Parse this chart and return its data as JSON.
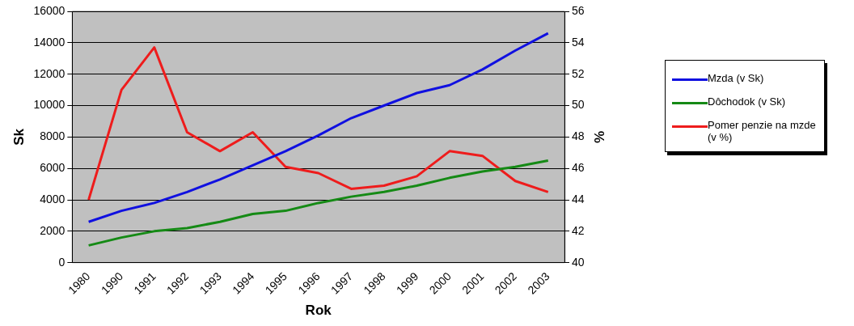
{
  "chart_data": {
    "type": "line",
    "xlabel": "Rok",
    "ylabel": "Sk",
    "y2label": "%",
    "categories": [
      "1980",
      "1990",
      "1991",
      "1992",
      "1993",
      "1994",
      "1995",
      "1996",
      "1997",
      "1998",
      "1999",
      "2000",
      "2001",
      "2002",
      "2003"
    ],
    "series": [
      {
        "name": "Mzda (v Sk)",
        "color": "#1010e0",
        "values": [
          2600,
          3300,
          3800,
          4500,
          5300,
          6200,
          7100,
          8100,
          9200,
          10000,
          10800,
          11300,
          12300,
          13500,
          14600
        ]
      },
      {
        "name": "Dôchodok (v Sk)",
        "color": "#158a15",
        "values": [
          1100,
          1600,
          2000,
          2200,
          2600,
          3100,
          3300,
          3800,
          4200,
          4500,
          4900,
          5400,
          5800,
          6100,
          6500
        ]
      },
      {
        "name": "Pomer penzie na mzde (v %)",
        "color": "#ee1c1c",
        "axis": "y2",
        "values": [
          44.0,
          51.0,
          53.7,
          48.3,
          47.1,
          48.3,
          46.1,
          45.7,
          44.7,
          44.9,
          45.5,
          47.1,
          46.8,
          45.2,
          44.5
        ]
      }
    ],
    "ylim": [
      0,
      16000
    ],
    "yticks": [
      0,
      2000,
      4000,
      6000,
      8000,
      10000,
      12000,
      14000,
      16000
    ],
    "y2lim": [
      40,
      56
    ],
    "y2ticks": [
      40,
      42,
      44,
      46,
      48,
      50,
      52,
      54,
      56
    ],
    "grid": "y",
    "legend": "right",
    "marker": "none",
    "line_style": "solid"
  }
}
